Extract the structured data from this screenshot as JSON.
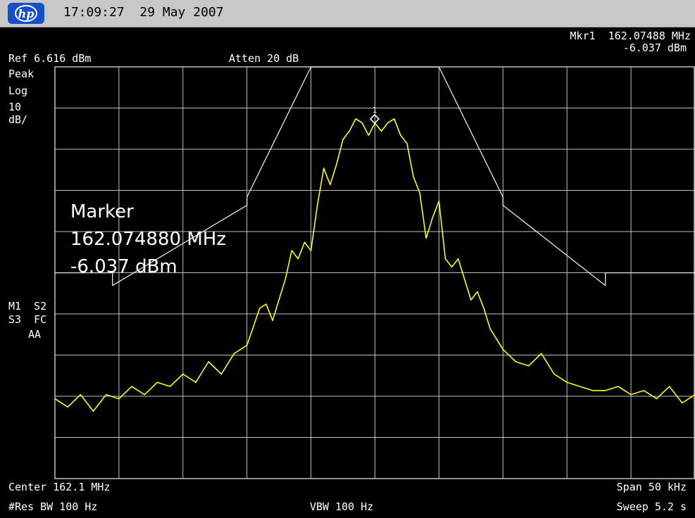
{
  "header": {
    "timestamp": "17:09:27  29 May 2007",
    "logo_text": "hp"
  },
  "top": {
    "mkr_line1": "Mkr1  162.07488 MHz",
    "mkr_line2": "-6.037 dBm",
    "ref": "Ref 6.616 dBm",
    "atten": "Atten 20 dB"
  },
  "left": {
    "detector": "Peak",
    "scale_type": "Log",
    "scale_value": "10",
    "scale_unit": "dB/",
    "m1s2": "M1  S2",
    "s3fc": "S3  FC",
    "aa": "AA"
  },
  "marker_box": {
    "title": "Marker",
    "freq": "162.074880 MHz",
    "level": "-6.037 dBm"
  },
  "bottom": {
    "center": "Center 162.1 MHz",
    "span": "Span 50 kHz",
    "res_bw": "#Res BW 100 Hz",
    "vbw": "VBW 100 Hz",
    "sweep": "Sweep 5.2 s"
  },
  "colors": {
    "trace": "#ffff00",
    "grid": "#c0c0c0",
    "mask": "#e8e8e8",
    "background": "#000000"
  },
  "chart_data": {
    "type": "line",
    "xlabel": "",
    "ylabel": "",
    "x_unit": "kHz offset from center",
    "y_unit": "dBm",
    "xlim": [
      -25,
      25
    ],
    "ylim": [
      -93.384,
      6.616
    ],
    "grid": true,
    "marker": {
      "name": "1",
      "x": -0.025,
      "y": -6.037
    },
    "series": [
      {
        "name": "",
        "color": "#ffff00",
        "x": [
          -25,
          -24,
          -23,
          -22,
          -21,
          -20,
          -19,
          -18,
          -17,
          -16,
          -15,
          -14,
          -13,
          -12,
          -11,
          -10,
          -9,
          -8.5,
          -8,
          -7.5,
          -7,
          -6.5,
          -6,
          -5.5,
          -5,
          -4.5,
          -4,
          -3.5,
          -3,
          -2.5,
          -2,
          -1.5,
          -1,
          -0.5,
          0,
          0.5,
          1,
          1.5,
          2,
          2.5,
          3,
          3.5,
          4,
          4.5,
          5,
          5.5,
          6,
          6.5,
          7,
          7.5,
          8,
          8.5,
          9,
          10,
          11,
          12,
          13,
          14,
          15,
          16,
          17,
          18,
          19,
          20,
          21,
          22,
          23,
          24,
          25
        ],
        "y": [
          -74,
          -76,
          -73,
          -77,
          -73,
          -74,
          -71,
          -73,
          -70,
          -71,
          -68,
          -70,
          -65,
          -68,
          -63,
          -61,
          -52,
          -51,
          -55,
          -50,
          -45,
          -38,
          -40,
          -36,
          -38,
          -27,
          -18,
          -22,
          -17,
          -11,
          -9,
          -6,
          -7,
          -10,
          -7,
          -9,
          -7,
          -6,
          -10,
          -12,
          -20,
          -24,
          -35,
          -30,
          -26,
          -40,
          -42,
          -40,
          -45,
          -50,
          -48,
          -52,
          -57,
          -62,
          -65,
          -66,
          -63,
          -68,
          -70,
          -71,
          -72,
          -72,
          -71,
          -73,
          -72,
          -74,
          -71,
          -75,
          -73
        ]
      },
      {
        "name": "",
        "color": "#e8e8e8",
        "x": [
          -25,
          -20.5,
          -20.5,
          -10,
          -10,
          -5,
          5,
          10,
          10,
          18,
          18,
          25
        ],
        "y": [
          -43.4,
          -43.4,
          -46.5,
          -27,
          -25,
          6.6,
          6.6,
          -25,
          -27,
          -46.5,
          -43.4,
          -43.4
        ]
      }
    ]
  }
}
